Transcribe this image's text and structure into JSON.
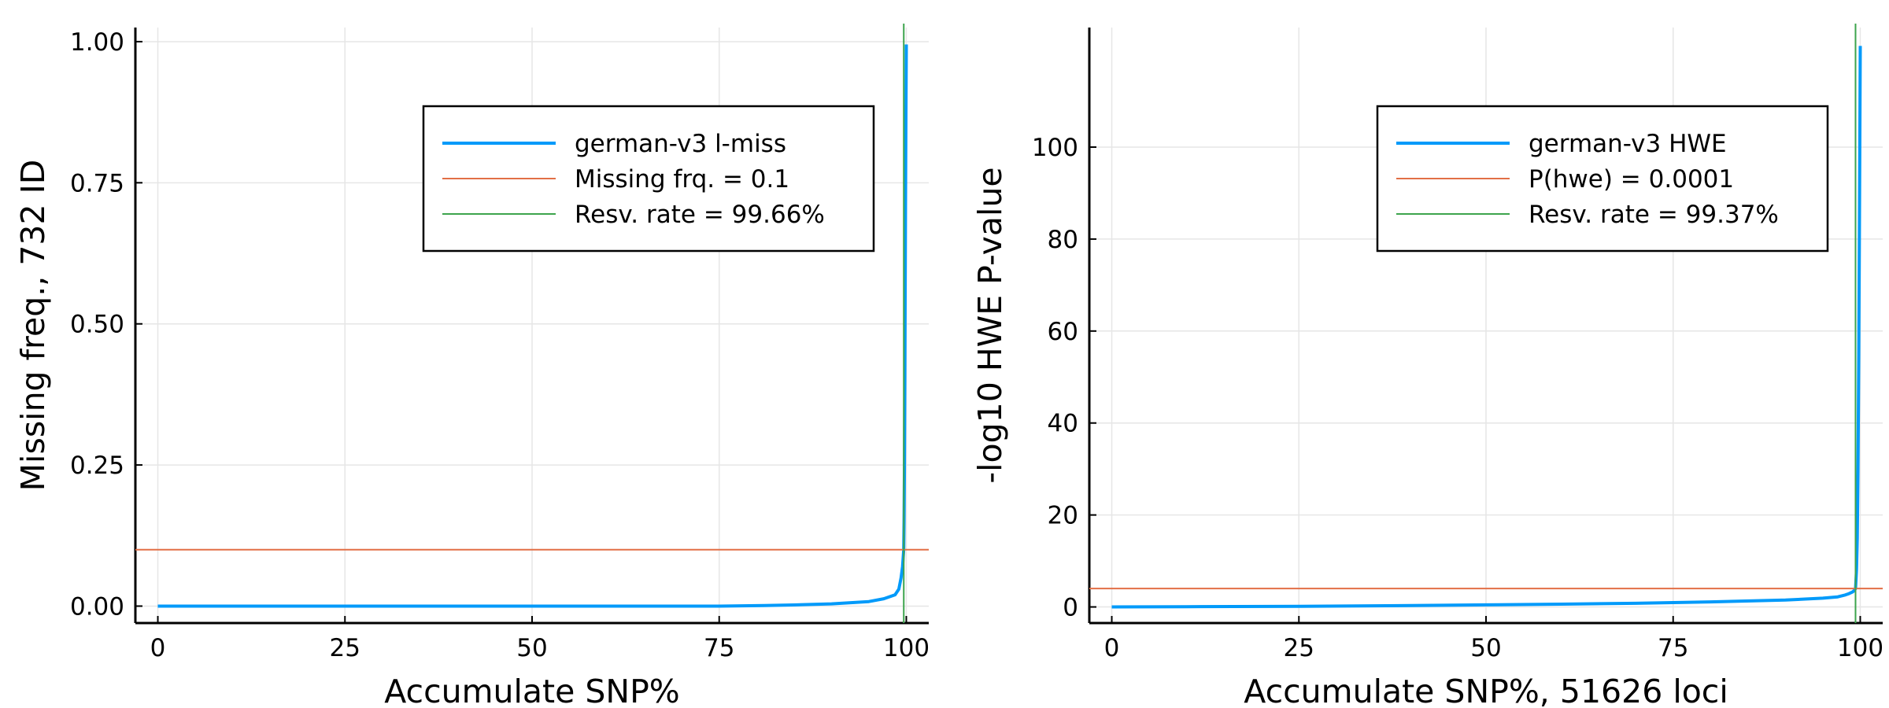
{
  "colors": {
    "series": "#009AFA",
    "threshold": "#E26F46",
    "rate": "#3DA44D",
    "grid": "#E6E6E6",
    "legend_border": "#000000"
  },
  "chart_data": [
    {
      "type": "line",
      "xlabel": "Accumulate SNP%",
      "ylabel": "Missing freq., 732 ID",
      "xlim": [
        -3,
        103
      ],
      "ylim": [
        -0.03,
        1.025
      ],
      "x_ticks": [
        0,
        25,
        50,
        75,
        100
      ],
      "x_tick_labels": [
        "0",
        "25",
        "50",
        "75",
        "100"
      ],
      "y_ticks": [
        0,
        0.25,
        0.5,
        0.75,
        1.0
      ],
      "y_tick_labels": [
        "0.00",
        "0.25",
        "0.50",
        "0.75",
        "1.00"
      ],
      "grid": true,
      "legend_position": "top-right",
      "series": [
        {
          "name": "german-v3 l-miss",
          "kind": "curve",
          "x": [
            0,
            20,
            40,
            60,
            75,
            81,
            85,
            90,
            95,
            97,
            98.5,
            99,
            99.3,
            99.5,
            99.6,
            99.66,
            99.7,
            99.75,
            99.8,
            99.85,
            99.9,
            99.95,
            100
          ],
          "y": [
            0,
            0,
            0,
            0,
            0,
            0.001,
            0.002,
            0.004,
            0.008,
            0.013,
            0.02,
            0.03,
            0.05,
            0.07,
            0.09,
            0.1,
            0.15,
            0.25,
            0.4,
            0.55,
            0.72,
            0.87,
            0.995
          ]
        },
        {
          "name": "Missing frq. = 0.1",
          "kind": "hline",
          "value": 0.1
        },
        {
          "name": "Resv. rate = 99.66%",
          "kind": "vline",
          "value": 99.66
        }
      ]
    },
    {
      "type": "line",
      "xlabel": "Accumulate SNP%, 51626 loci",
      "ylabel": "-log10 HWE P-value",
      "xlim": [
        -3,
        103
      ],
      "ylim": [
        -3.5,
        126
      ],
      "x_ticks": [
        0,
        25,
        50,
        75,
        100
      ],
      "x_tick_labels": [
        "0",
        "25",
        "50",
        "75",
        "100"
      ],
      "y_ticks": [
        0,
        20,
        40,
        60,
        80,
        100
      ],
      "y_tick_labels": [
        "0",
        "20",
        "40",
        "60",
        "80",
        "100"
      ],
      "grid": true,
      "legend_position": "top-right",
      "series": [
        {
          "name": "german-v3 HWE",
          "kind": "curve",
          "x": [
            0,
            10,
            25,
            40,
            50,
            60,
            70,
            80,
            90,
            95,
            97,
            98,
            98.5,
            99,
            99.2,
            99.37,
            99.5,
            99.6,
            99.7,
            99.8,
            99.9,
            100
          ],
          "y": [
            0,
            0.05,
            0.15,
            0.3,
            0.45,
            0.6,
            0.8,
            1.1,
            1.5,
            1.9,
            2.2,
            2.6,
            2.9,
            3.3,
            3.6,
            4,
            8,
            15,
            30,
            55,
            85,
            122
          ]
        },
        {
          "name": "P(hwe) = 0.0001",
          "kind": "hline",
          "value": 4
        },
        {
          "name": "Resv. rate = 99.37%",
          "kind": "vline",
          "value": 99.37
        }
      ]
    }
  ]
}
